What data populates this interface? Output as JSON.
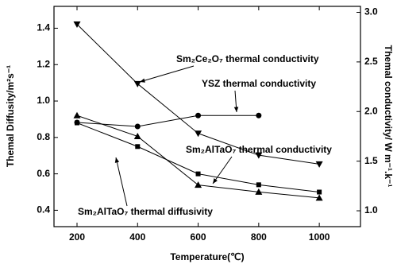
{
  "chart_data": {
    "type": "line",
    "x_label": "Temperature(℃)",
    "y_label": "Themal Diffusity/m²s⁻¹",
    "y2_label": "Themal conductivity/ W m⁻¹.k⁻¹",
    "x": [
      200,
      400,
      600,
      800,
      1000
    ],
    "xlim": [
      124,
      1136
    ],
    "xticks": [
      200,
      400,
      600,
      800,
      1000
    ],
    "ylim": [
      0.31,
      1.52
    ],
    "yticks": [
      0.4,
      0.6,
      0.8,
      {
        "value": 1,
        "label": "1.0"
      },
      1.2,
      1.4
    ],
    "y2lim": [
      0.84,
      3.06
    ],
    "y2ticks": [
      {
        "value": 1,
        "label": "1.0"
      },
      1.5,
      {
        "value": 2,
        "label": "2.0"
      },
      2.5,
      {
        "value": 3,
        "label": "3.0"
      }
    ],
    "series": [
      {
        "name": "Sm₂Ce₂O₇ thermal conductivity",
        "color": "#000000",
        "marker": "triangle-down",
        "axis": "y2",
        "values": [
          2.88,
          2.28,
          1.78,
          1.56,
          1.47
        ]
      },
      {
        "name": "YSZ thermal conductivity",
        "color": "#000000",
        "marker": "circle",
        "axis": "y2",
        "values": [
          1.89,
          1.85,
          1.96,
          1.96,
          null
        ]
      },
      {
        "name": "Sm₂AlTaO₇ thermal conductivity",
        "color": "#000000",
        "marker": "triangle-up",
        "axis": "y2",
        "values": [
          1.96,
          1.75,
          1.26,
          1.19,
          1.13
        ]
      },
      {
        "name": "Sm₂AlTaO₇ thermal diffusivity",
        "color": "#000000",
        "marker": "square",
        "values": [
          0.88,
          0.75,
          0.6,
          0.54,
          0.5
        ]
      }
    ]
  }
}
